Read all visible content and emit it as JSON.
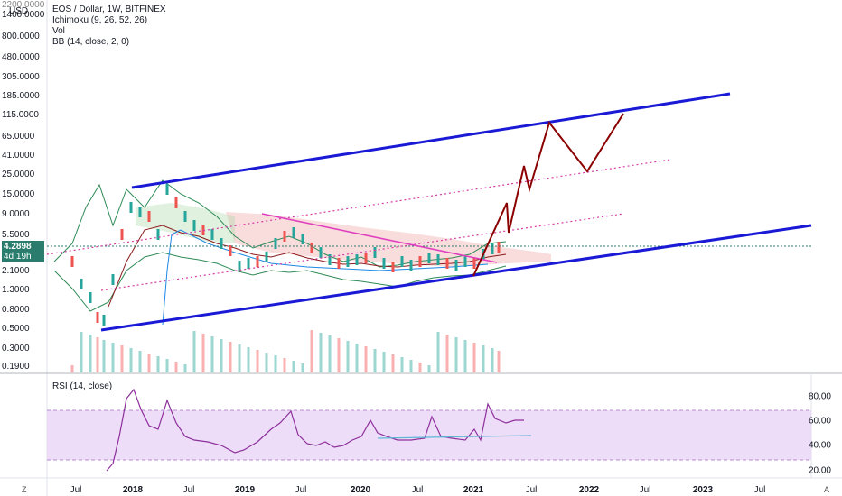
{
  "header": {
    "currency_fragment": "2200.0000",
    "currency": "USD",
    "symbol_line": "EOS / Dollar, 1W, BITFINEX",
    "indicator_1": "Ichimoku (9, 26, 52, 26)",
    "indicator_2": "Vol",
    "indicator_3": "BB (14, close, 2, 0)"
  },
  "price_badge": {
    "value": "4.2898",
    "countdown": "4d 19h",
    "color": "#2a7d6d"
  },
  "price_axis": [
    "1400.0000",
    "800.0000",
    "480.0000",
    "305.0000",
    "185.0000",
    "115.0000",
    "65.0000",
    "41.0000",
    "25.0000",
    "15.0000",
    "9.0000",
    "5.5000",
    "2.1000",
    "1.3000",
    "0.8000",
    "0.5000",
    "0.3000",
    "0.1900"
  ],
  "rsi": {
    "title": "RSI (14, close)",
    "axis": [
      "80.00",
      "60.00",
      "40.00",
      "20.00"
    ],
    "band_upper": 70,
    "band_lower": 30,
    "band_color": "#e8d4f6",
    "line_color": "#8e2f9c"
  },
  "time_axis": [
    {
      "label": "Jul",
      "year": false
    },
    {
      "label": "2018",
      "year": true
    },
    {
      "label": "Jul",
      "year": false
    },
    {
      "label": "2019",
      "year": true
    },
    {
      "label": "Jul",
      "year": false
    },
    {
      "label": "2020",
      "year": true
    },
    {
      "label": "Jul",
      "year": false
    },
    {
      "label": "2021",
      "year": true
    },
    {
      "label": "Jul",
      "year": false
    },
    {
      "label": "2022",
      "year": true
    },
    {
      "label": "Jul",
      "year": false
    },
    {
      "label": "2023",
      "year": true
    },
    {
      "label": "Jul",
      "year": false
    }
  ],
  "corner": {
    "zoom_button": "Z",
    "auto_button": "A"
  },
  "colors": {
    "channel": "#1a1ad6",
    "projection": "#8b0000",
    "trendline": "#e040c0",
    "candle_up": "#26a69a",
    "candle_down": "#ef5350"
  }
}
